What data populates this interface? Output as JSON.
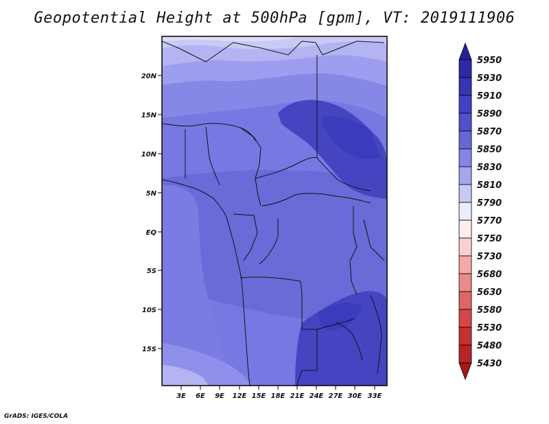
{
  "title": "Geopotential Height at 500hPa [gpm], VT: 2019111906",
  "credit": "GrADS: IGES/COLA",
  "map": {
    "lat_ticks": [
      "20N",
      "15N",
      "10N",
      "5N",
      "EQ",
      "5S",
      "10S",
      "15S"
    ],
    "lon_ticks": [
      "3E",
      "6E",
      "9E",
      "12E",
      "15E",
      "18E",
      "21E",
      "24E",
      "27E",
      "30E",
      "33E"
    ],
    "field_colors": [
      "#dcdcf8",
      "#c9c9f6",
      "#b4b4f2",
      "#9e9ef0",
      "#8787e8",
      "#7676e0",
      "#6a6ad8",
      "#5555cc",
      "#4545c2"
    ]
  },
  "colorbar": {
    "levels": [
      "5950",
      "5930",
      "5910",
      "5890",
      "5870",
      "5850",
      "5830",
      "5810",
      "5790",
      "5770",
      "5750",
      "5730",
      "5680",
      "5630",
      "5580",
      "5530",
      "5480",
      "5430"
    ],
    "colors": [
      "#27209a",
      "#2d28a8",
      "#3535b5",
      "#4141c4",
      "#5151cc",
      "#6767d9",
      "#8484e6",
      "#a5a5ee",
      "#c9c9f6",
      "#ececfb",
      "#ffecec",
      "#fbd0d0",
      "#f4a8a8",
      "#eb8a8a",
      "#e06666",
      "#d74747",
      "#c83030",
      "#b62525",
      "#a31818"
    ]
  }
}
